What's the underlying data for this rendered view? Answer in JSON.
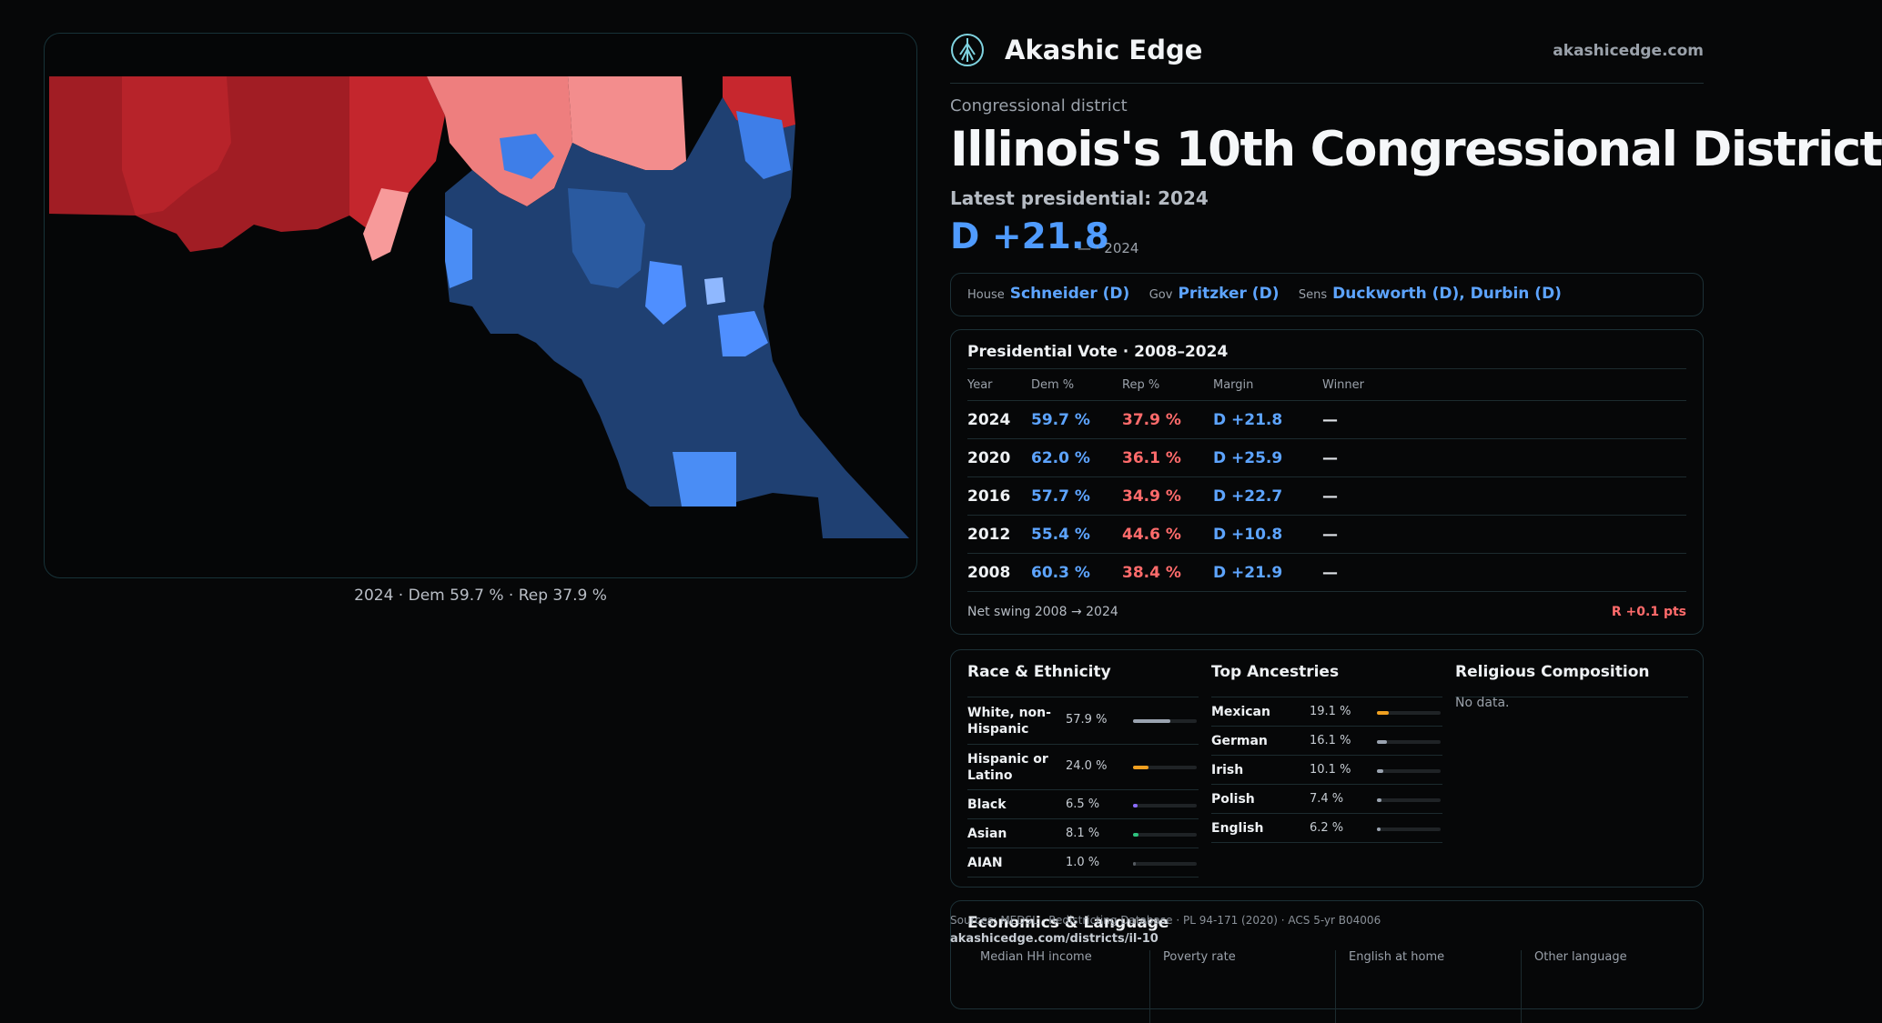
{
  "map": {
    "caption": "2024 · Dem 59.7 % · Rep 37.9 %",
    "colors": {
      "rep_dark": "#9b1c22",
      "rep": "#c9272e",
      "rep_light": "#f07c7c",
      "dem_dark": "#1e3e6e",
      "dem": "#2d5ea8",
      "dem_light": "#4f8fff"
    }
  },
  "brand": {
    "name": "Akashic Edge",
    "url": "akashicedge.com",
    "logo_icon": "tree-glyph-icon"
  },
  "header": {
    "eyebrow": "Congressional district",
    "title": "Illinois's 10th Congressional District",
    "latest_label": "Latest presidential: 2024",
    "margin": "D +21.8",
    "margin_sub": "— · 2024"
  },
  "officials": [
    {
      "role": "House",
      "name": "Schneider (D)"
    },
    {
      "role": "Gov",
      "name": "Pritzker (D)"
    },
    {
      "role": "Sens",
      "name": "Duckworth (D), Durbin (D)"
    }
  ],
  "presidential": {
    "title": "Presidential Vote · 2008–2024",
    "columns": [
      "Year",
      "Dem %",
      "Rep %",
      "Margin",
      "Winner"
    ],
    "rows": [
      {
        "year": "2024",
        "dem": "59.7 %",
        "rep": "37.9 %",
        "margin": "D +21.8",
        "winner": "—"
      },
      {
        "year": "2020",
        "dem": "62.0 %",
        "rep": "36.1 %",
        "margin": "D +25.9",
        "winner": "—"
      },
      {
        "year": "2016",
        "dem": "57.7 %",
        "rep": "34.9 %",
        "margin": "D +22.7",
        "winner": "—"
      },
      {
        "year": "2012",
        "dem": "55.4 %",
        "rep": "44.6 %",
        "margin": "D +10.8",
        "winner": "—"
      },
      {
        "year": "2008",
        "dem": "60.3 %",
        "rep": "38.4 %",
        "margin": "D +21.9",
        "winner": "—"
      }
    ],
    "swing_label": "Net swing 2008 → 2024",
    "swing_value": "R +0.1 pts"
  },
  "race": {
    "title": "Race & Ethnicity",
    "rows": [
      {
        "name": "White, non-Hispanic",
        "pct": "57.9 %",
        "value": 57.9,
        "color": "#9aa3b0"
      },
      {
        "name": "Hispanic or Latino",
        "pct": "24.0 %",
        "value": 24.0,
        "color": "#f0a020"
      },
      {
        "name": "Black",
        "pct": "6.5 %",
        "value": 6.5,
        "color": "#8a6cff"
      },
      {
        "name": "Asian",
        "pct": "8.1 %",
        "value": 8.1,
        "color": "#2ec27e"
      },
      {
        "name": "AIAN",
        "pct": "1.0 %",
        "value": 1.0,
        "color": "#555a60"
      }
    ]
  },
  "ancestry": {
    "title": "Top Ancestries",
    "rows": [
      {
        "name": "Mexican",
        "pct": "19.1 %",
        "value": 19.1,
        "color": "#f0a020"
      },
      {
        "name": "German",
        "pct": "16.1 %",
        "value": 16.1,
        "color": "#9aa3b0"
      },
      {
        "name": "Irish",
        "pct": "10.1 %",
        "value": 10.1,
        "color": "#9aa3b0"
      },
      {
        "name": "Polish",
        "pct": "7.4 %",
        "value": 7.4,
        "color": "#9aa3b0"
      },
      {
        "name": "English",
        "pct": "6.2 %",
        "value": 6.2,
        "color": "#9aa3b0"
      }
    ]
  },
  "religion": {
    "title": "Religious Composition",
    "empty": "No data."
  },
  "economics": {
    "title": "Economics & Language",
    "cells": [
      {
        "label": "Median HH income"
      },
      {
        "label": "Poverty rate"
      },
      {
        "label": "English at home"
      },
      {
        "label": "Other language"
      }
    ]
  },
  "footer": {
    "source": "Sources: MEDSL · Redistricting Database · PL 94-171 (2020) · ACS 5-yr B04006",
    "url": "akashicedge.com/districts/il-10"
  }
}
